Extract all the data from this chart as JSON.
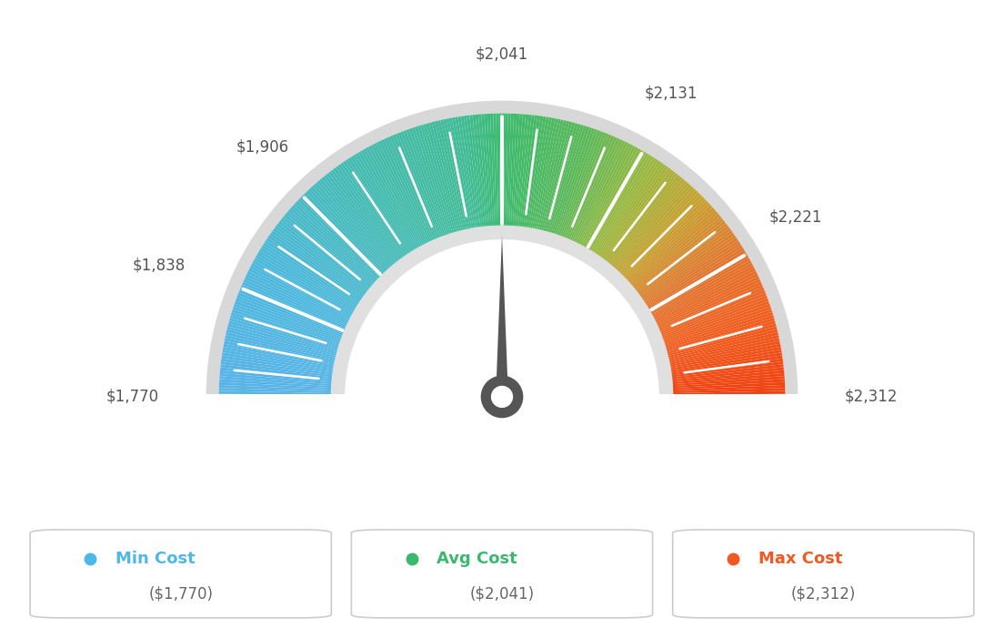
{
  "min_val": 1770,
  "max_val": 2312,
  "avg_val": 2041,
  "tick_labels": [
    "$1,770",
    "$1,838",
    "$1,906",
    "$2,041",
    "$2,131",
    "$2,221",
    "$2,312"
  ],
  "tick_values": [
    1770,
    1838,
    1906,
    2041,
    2131,
    2221,
    2312
  ],
  "legend": [
    {
      "label": "Min Cost",
      "sublabel": "($1,770)",
      "color": "#4db8e8"
    },
    {
      "label": "Avg Cost",
      "sublabel": "($2,041)",
      "color": "#3ab96e"
    },
    {
      "label": "Max Cost",
      "sublabel": "($2,312)",
      "color": "#f05a22"
    }
  ],
  "background_color": "#ffffff",
  "outer_r": 1.0,
  "inner_r": 0.6,
  "needle_value": 2041,
  "color_stops": [
    [
      0.0,
      "#5ab4e8"
    ],
    [
      0.15,
      "#4db8dd"
    ],
    [
      0.3,
      "#45bbb5"
    ],
    [
      0.45,
      "#42bb96"
    ],
    [
      0.5,
      "#3dbb6e"
    ],
    [
      0.6,
      "#5db85a"
    ],
    [
      0.68,
      "#9ab840"
    ],
    [
      0.75,
      "#c8a030"
    ],
    [
      0.82,
      "#e07830"
    ],
    [
      0.9,
      "#f06020"
    ],
    [
      1.0,
      "#f04010"
    ]
  ]
}
